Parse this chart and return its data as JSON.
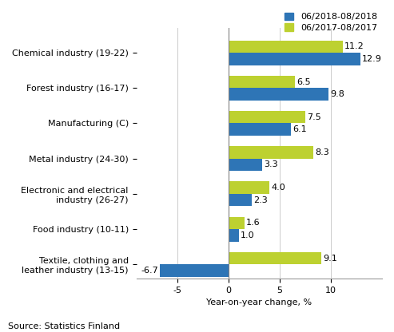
{
  "categories": [
    "Chemical industry (19-22)",
    "Forest industry (16-17)",
    "Manufacturing (C)",
    "Metal industry (24-30)",
    "Electronic and electrical\nindustry (26-27)",
    "Food industry (10-11)",
    "Textile, clothing and\nleather industry (13-15)"
  ],
  "series_2018": [
    12.9,
    9.8,
    6.1,
    3.3,
    2.3,
    1.0,
    -6.7
  ],
  "series_2017": [
    11.2,
    6.5,
    7.5,
    8.3,
    4.0,
    1.6,
    9.1
  ],
  "color_2018": "#2e75b6",
  "color_2017": "#bdd130",
  "legend_2018": "06/2018-08/2018",
  "legend_2017": "06/2017-08/2017",
  "xlabel": "Year-on-year change, %",
  "source": "Source: Statistics Finland",
  "xlim": [
    -9,
    15
  ],
  "xticks": [
    -5,
    0,
    5,
    10
  ],
  "bar_height": 0.35,
  "label_fontsize": 8.0,
  "tick_fontsize": 8.0,
  "source_fontsize": 8
}
